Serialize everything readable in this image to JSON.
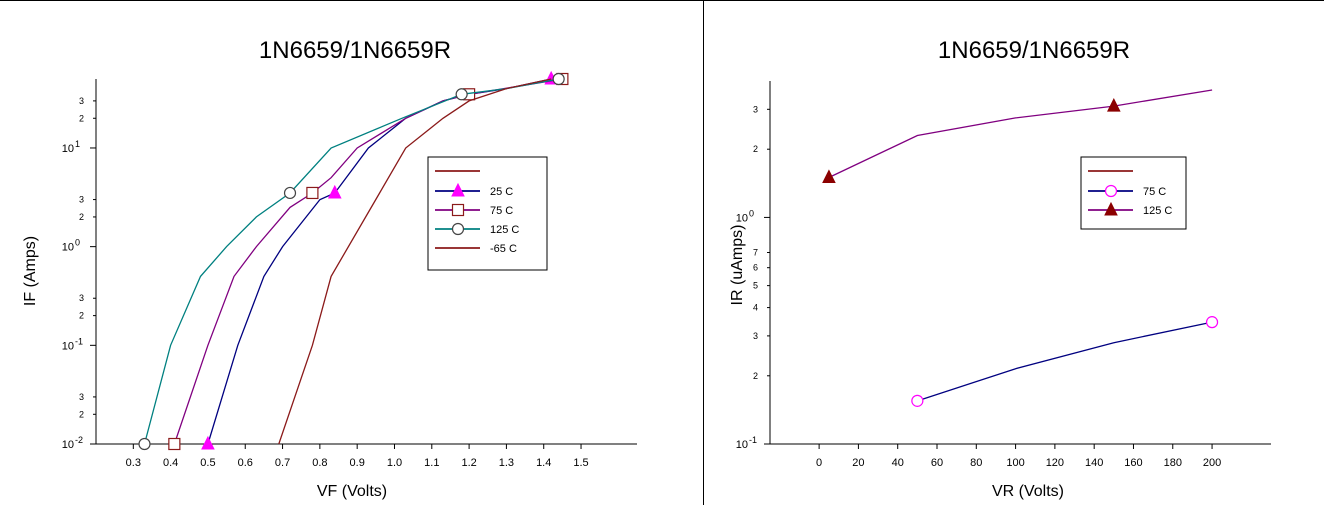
{
  "chart_data": [
    {
      "type": "line",
      "title": "1N6659/1N6659R",
      "xlabel": "VF (Volts)",
      "ylabel": "IF (Amps)",
      "xscale": "linear",
      "yscale": "log",
      "xlim": [
        0.2,
        1.65
      ],
      "ylim": [
        0.01,
        50
      ],
      "xticks": [
        "0.3",
        "0.4",
        "0.5",
        "0.6",
        "0.7",
        "0.8",
        "0.9",
        "1.0",
        "1.1",
        "1.2",
        "1.3",
        "1.4",
        "1.5"
      ],
      "yticks": [
        {
          "value": 0.01,
          "label": "10",
          "exp": "-2"
        },
        {
          "value": 0.1,
          "label": "10",
          "exp": "-1"
        },
        {
          "value": 1,
          "label": "10",
          "exp": "0"
        },
        {
          "value": 10,
          "label": "10",
          "exp": "1"
        }
      ],
      "yminor": [
        {
          "value": 0.02,
          "label": "2"
        },
        {
          "value": 0.03,
          "label": "3"
        },
        {
          "value": 0.2,
          "label": "2"
        },
        {
          "value": 0.3,
          "label": "3"
        },
        {
          "value": 2,
          "label": "2"
        },
        {
          "value": 3,
          "label": "3"
        },
        {
          "value": 20,
          "label": "2"
        },
        {
          "value": 30,
          "label": "3"
        }
      ],
      "legend": {
        "position": "center-right",
        "blank_entry_color": "#8b1a1a"
      },
      "series": [
        {
          "name": "25 C",
          "color": "#000080",
          "marker": "triangle",
          "marker_color": "#ff00ff",
          "x": [
            0.5,
            0.58,
            0.65,
            0.7,
            0.8,
            0.84,
            0.93,
            1.03,
            1.13,
            1.2,
            1.3,
            1.42
          ],
          "y": [
            0.01,
            0.1,
            0.5,
            1,
            3,
            3.5,
            10,
            20,
            30,
            35,
            40,
            50
          ],
          "markers_at": [
            0,
            5,
            11
          ]
        },
        {
          "name": "75 C",
          "color": "#800080",
          "marker": "square",
          "marker_color": "#8b1a1a",
          "x": [
            0.41,
            0.5,
            0.57,
            0.63,
            0.72,
            0.78,
            0.83,
            0.9,
            1.03,
            1.13,
            1.2,
            1.45
          ],
          "y": [
            0.01,
            0.1,
            0.5,
            1,
            2.5,
            3.5,
            5,
            10,
            20,
            30,
            35,
            50
          ],
          "markers_at": [
            0,
            5,
            10,
            11
          ]
        },
        {
          "name": "125 C",
          "color": "#008080",
          "marker": "circle",
          "marker_color": "#444444",
          "x": [
            0.33,
            0.4,
            0.48,
            0.55,
            0.63,
            0.72,
            0.83,
            1.02,
            1.18,
            1.3,
            1.44
          ],
          "y": [
            0.01,
            0.1,
            0.5,
            1,
            2,
            3.5,
            10,
            20,
            35,
            40,
            50
          ],
          "markers_at": [
            0,
            5,
            8,
            10
          ]
        },
        {
          "name": "-65 C",
          "color": "#8b1a1a",
          "marker": "none",
          "x": [
            0.69,
            0.78,
            0.83,
            0.96,
            1.03,
            1.13,
            1.2,
            1.3,
            1.42
          ],
          "y": [
            0.01,
            0.1,
            0.5,
            3.5,
            10,
            20,
            30,
            40,
            50
          ],
          "markers_at": []
        }
      ]
    },
    {
      "type": "line",
      "title": "1N6659/1N6659R",
      "xlabel": "VR (Volts)",
      "ylabel": "IR (uAmps)",
      "xscale": "linear",
      "yscale": "log",
      "xlim": [
        -25,
        230
      ],
      "ylim": [
        0.1,
        4
      ],
      "xticks": [
        "0",
        "20",
        "40",
        "60",
        "80",
        "100",
        "120",
        "140",
        "160",
        "180",
        "200"
      ],
      "yticks": [
        {
          "value": 0.1,
          "label": "10",
          "exp": "-1"
        },
        {
          "value": 1,
          "label": "10",
          "exp": "0"
        }
      ],
      "yminor": [
        {
          "value": 0.2,
          "label": "2"
        },
        {
          "value": 0.3,
          "label": "3"
        },
        {
          "value": 0.4,
          "label": "4"
        },
        {
          "value": 0.5,
          "label": "5"
        },
        {
          "value": 0.6,
          "label": "6"
        },
        {
          "value": 0.7,
          "label": "7"
        },
        {
          "value": 2,
          "label": "2"
        },
        {
          "value": 3,
          "label": "3"
        }
      ],
      "legend": {
        "position": "center-right",
        "blank_entry_color": "#8b1a1a"
      },
      "series": [
        {
          "name": "75 C",
          "color": "#000080",
          "marker": "circle",
          "marker_color": "#ff00ff",
          "x": [
            50,
            100,
            150,
            200
          ],
          "y": [
            0.155,
            0.215,
            0.28,
            0.345
          ],
          "markers_at": [
            0,
            3
          ]
        },
        {
          "name": "125 C",
          "color": "#800080",
          "marker": "triangle",
          "marker_color": "#8b0000",
          "x": [
            5,
            50,
            100,
            150,
            200
          ],
          "y": [
            1.5,
            2.3,
            2.75,
            3.1,
            3.65
          ],
          "markers_at": [
            0,
            3
          ]
        }
      ]
    }
  ]
}
